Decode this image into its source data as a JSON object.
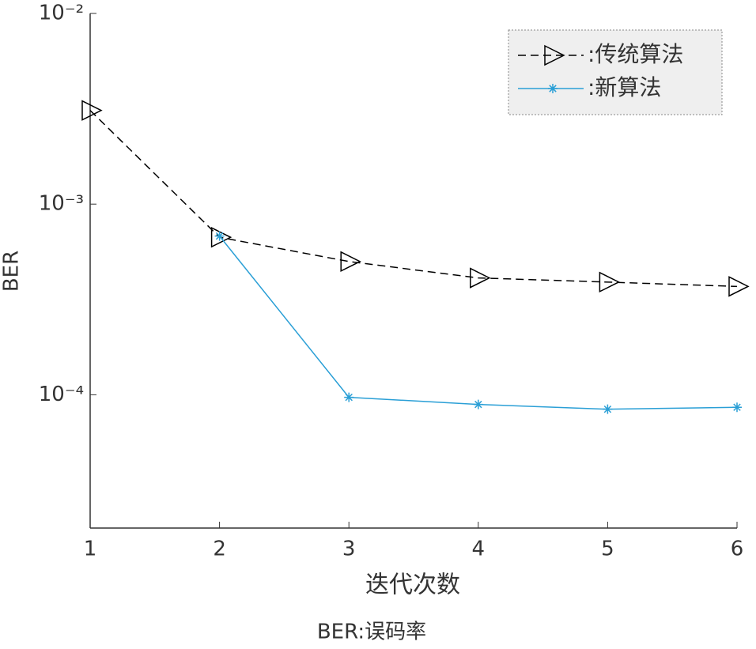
{
  "chart_data": {
    "type": "line",
    "x": [
      1,
      2,
      3,
      4,
      5,
      6
    ],
    "series": [
      {
        "name": ":传统算法",
        "color": "#000000",
        "marker": "triangle-right",
        "dash": true,
        "values": [
          0.0031,
          0.00067,
          0.0005,
          0.00041,
          0.00039,
          0.00037
        ]
      },
      {
        "name": ":新算法",
        "color": "#2a9fd6",
        "marker": "asterisk",
        "dash": false,
        "values": [
          null,
          0.00068,
          9.7e-05,
          8.9e-05,
          8.4e-05,
          8.6e-05
        ]
      }
    ],
    "xlabel": "迭代次数",
    "ylabel": "BER",
    "caption": "BER:误码率",
    "xlim": [
      1,
      6
    ],
    "xticks": [
      1,
      2,
      3,
      4,
      5,
      6
    ],
    "ylim": [
      2e-05,
      0.01
    ],
    "yscale": "log",
    "yticks": [
      {
        "value": 0.0001,
        "label": "10⁻⁴"
      },
      {
        "value": 0.001,
        "label": "10⁻³"
      },
      {
        "value": 0.01,
        "label": "10⁻²"
      }
    ],
    "legend": "upper right",
    "grid": false
  }
}
